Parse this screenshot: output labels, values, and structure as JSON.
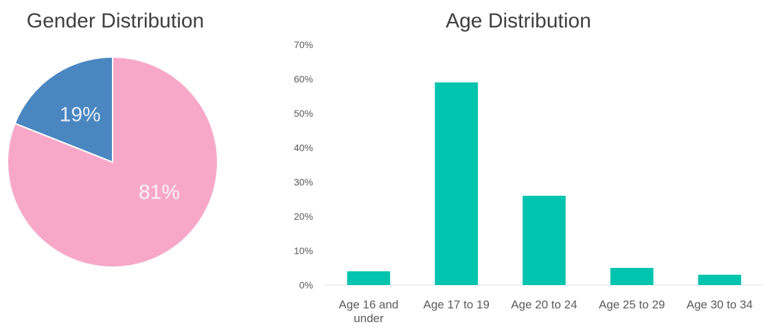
{
  "chart_data": [
    {
      "type": "pie",
      "title": "Gender Distribution",
      "slices": [
        {
          "value": 81,
          "label": "81%",
          "color": "#f7a8c8"
        },
        {
          "value": 19,
          "label": "19%",
          "color": "#4a87c1"
        }
      ],
      "start": "12 o'clock",
      "direction": "clockwise"
    },
    {
      "type": "bar",
      "title": "Age Distribution",
      "categories": [
        "Age 16 and under",
        "Age 17 to 19",
        "Age 20 to 24",
        "Age 25 to 29",
        "Age 30 to 34"
      ],
      "values": [
        4,
        59,
        26,
        5,
        3
      ],
      "color": "#00c4ad",
      "ylim": [
        0,
        70
      ],
      "yticks": [
        "0%",
        "10%",
        "20%",
        "30%",
        "40%",
        "50%",
        "60%",
        "70%"
      ],
      "grid": false
    }
  ]
}
